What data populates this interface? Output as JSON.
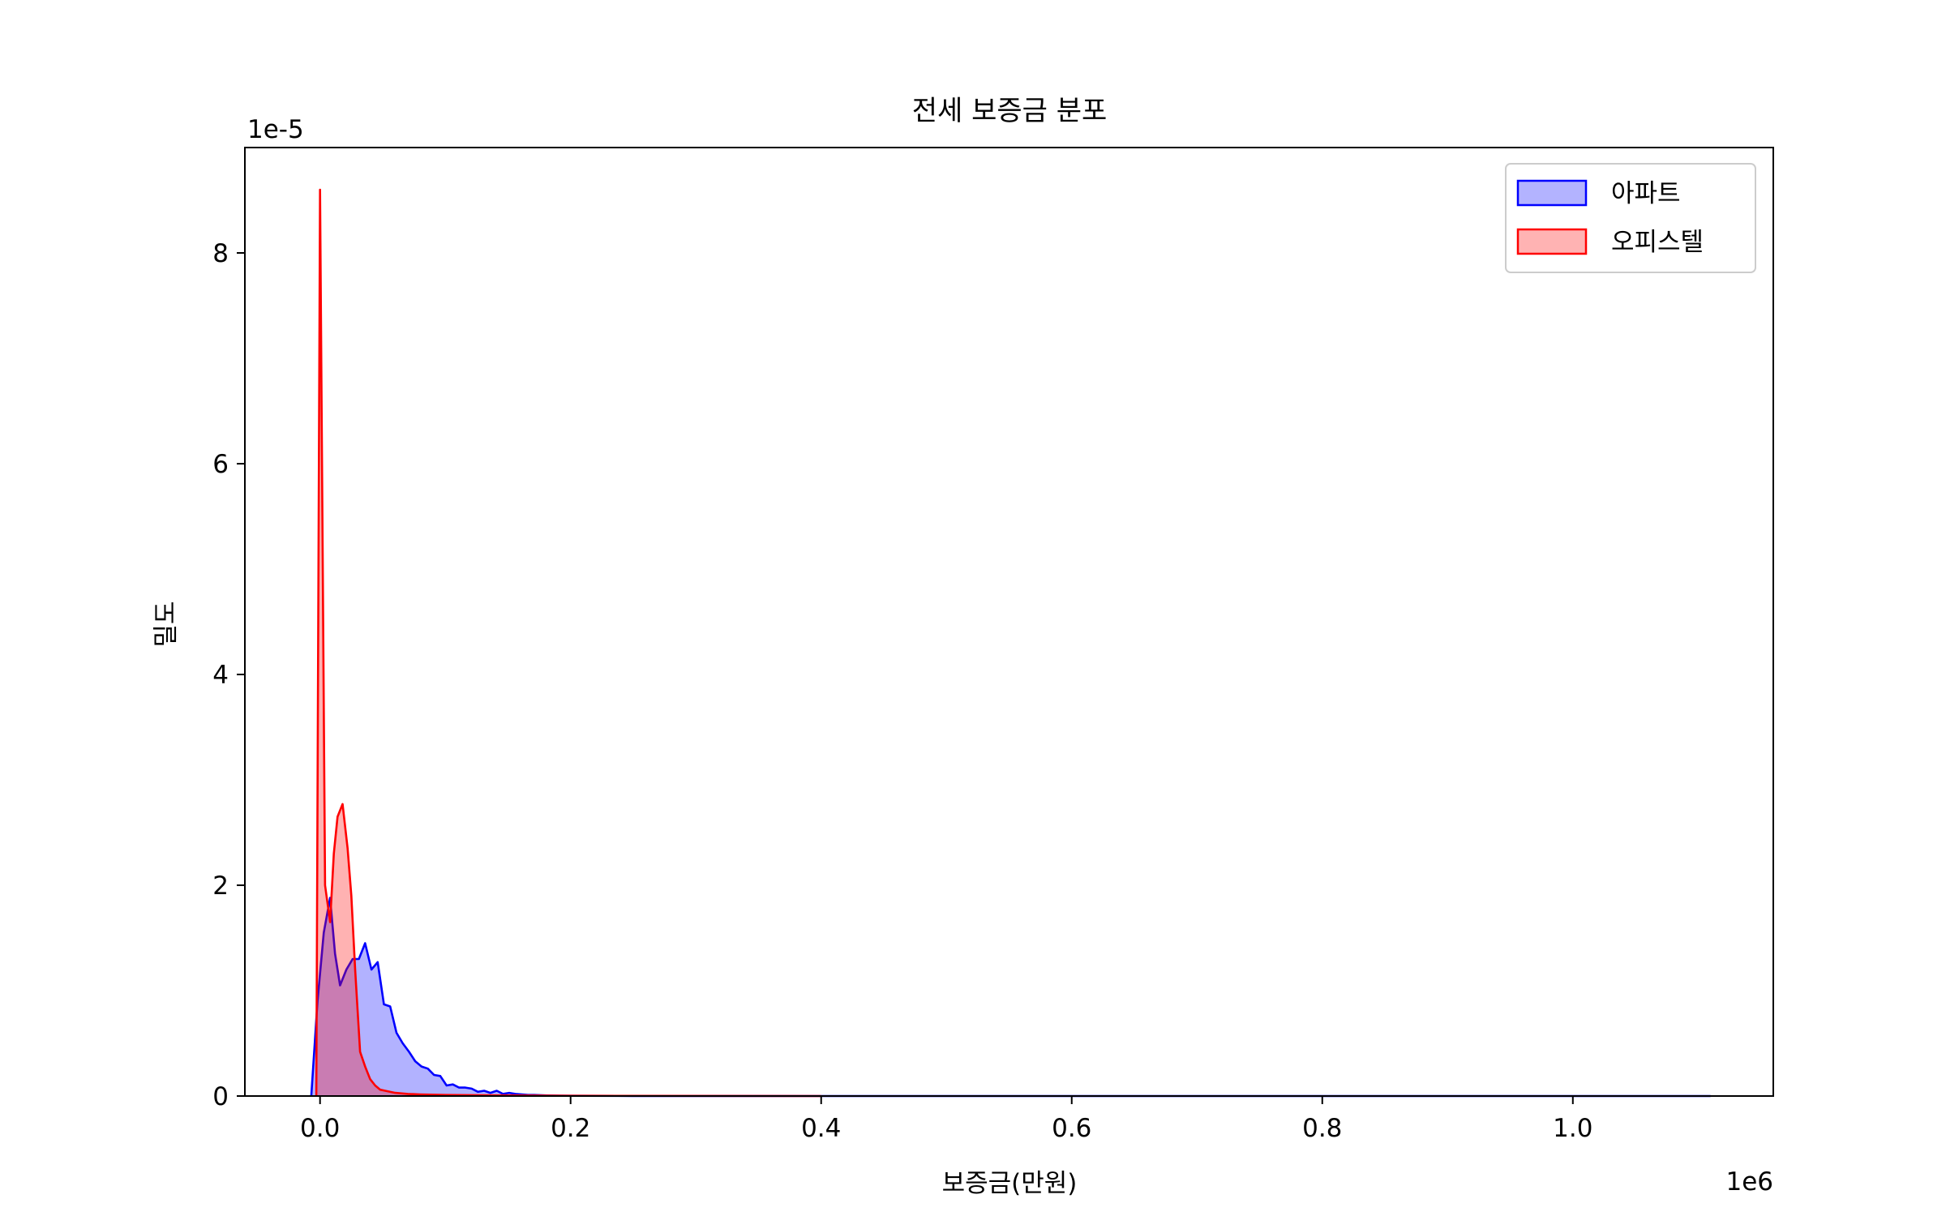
{
  "chart_data": {
    "type": "area",
    "title": "전세 보증금 분포",
    "xlabel": "보증금(만원)",
    "ylabel": "밀도",
    "x_offset_label": "1e6",
    "y_offset_label": "1e-5",
    "xlim": [
      -60000,
      1160000
    ],
    "ylim": [
      0,
      9e-05
    ],
    "x_ticks": [
      0,
      200000,
      400000,
      600000,
      800000,
      1000000
    ],
    "x_tick_labels": [
      "0.0",
      "0.2",
      "0.4",
      "0.6",
      "0.8",
      "1.0"
    ],
    "y_ticks": [
      0,
      2e-05,
      4e-05,
      6e-05,
      8e-05
    ],
    "y_tick_labels": [
      "0",
      "2",
      "4",
      "6",
      "8"
    ],
    "grid": false,
    "legend_position": "top-right",
    "series": [
      {
        "name": "아파트",
        "color": "#0000ff",
        "fill": "#b3b3ff",
        "x": [
          -7000,
          -2000,
          3000,
          8000,
          12000,
          16000,
          21000,
          26000,
          31000,
          36000,
          41000,
          46000,
          51000,
          56000,
          61000,
          66000,
          71000,
          76000,
          81000,
          86000,
          91000,
          96000,
          101000,
          106000,
          111000,
          116000,
          121000,
          126000,
          131000,
          136000,
          141000,
          146000,
          151000,
          156000,
          161000,
          166000,
          171000,
          181000,
          191000,
          201000,
          250000,
          400000,
          600000,
          800000,
          1000000,
          1110000
        ],
        "y": [
          0,
          9e-06,
          1.55e-05,
          1.88e-05,
          1.35e-05,
          1.05e-05,
          1.2e-05,
          1.3e-05,
          1.3e-05,
          1.45e-05,
          1.2e-05,
          1.27e-05,
          8.7e-06,
          8.5e-06,
          6e-06,
          5e-06,
          4.2e-06,
          3.3e-06,
          2.8e-06,
          2.6e-06,
          2e-06,
          1.9e-06,
          1e-06,
          1.1e-06,
          8e-07,
          8e-07,
          7e-07,
          4e-07,
          5e-07,
          3e-07,
          5e-07,
          2e-07,
          3e-07,
          2e-07,
          1.5e-07,
          1e-07,
          1e-07,
          5e-08,
          3e-08,
          2e-08,
          1e-08,
          0,
          0,
          0,
          0,
          0
        ]
      },
      {
        "name": "오피스텔",
        "color": "#ff0000",
        "fill": "#ffb3b3",
        "x": [
          -3000,
          0,
          4000,
          8000,
          11000,
          14000,
          18000,
          22000,
          25000,
          28000,
          32000,
          36000,
          40000,
          44000,
          48000,
          52000,
          60000,
          70000,
          80000,
          100000,
          150000,
          200000,
          400000
        ],
        "y": [
          0,
          8.6e-05,
          2e-05,
          1.65e-05,
          2.3e-05,
          2.65e-05,
          2.77e-05,
          2.35e-05,
          1.9e-05,
          1.2e-05,
          4.2e-06,
          2.8e-06,
          1.6e-06,
          1e-06,
          6e-07,
          5e-07,
          3e-07,
          2e-07,
          1.5e-07,
          1e-07,
          5e-08,
          2e-08,
          0
        ]
      }
    ]
  }
}
